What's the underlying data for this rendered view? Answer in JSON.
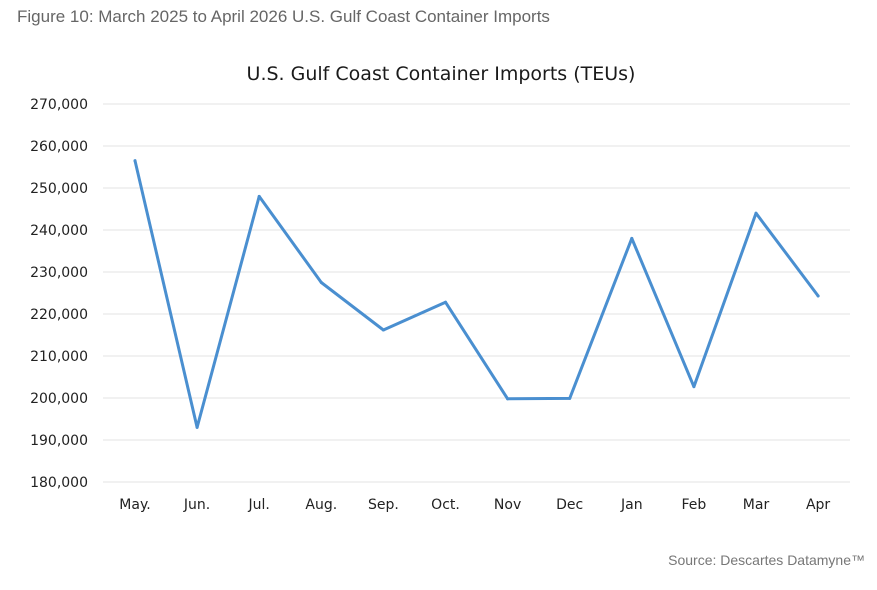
{
  "caption": "Figure 10: March 2025 to April 2026 U.S. Gulf Coast Container Imports",
  "source": "Source: Descartes Datamyne™",
  "colors": {
    "line": "#4a8fd0"
  },
  "chart_data": {
    "type": "line",
    "title": "U.S. Gulf Coast Container Imports (TEUs)",
    "xlabel": "",
    "ylabel": "",
    "categories": [
      "May.",
      "Jun.",
      "Jul.",
      "Aug.",
      "Sep.",
      "Oct.",
      "Nov",
      "Dec",
      "Jan",
      "Feb",
      "Mar",
      "Apr"
    ],
    "values": [
      256500,
      193000,
      248000,
      227500,
      216200,
      222800,
      199800,
      199900,
      238000,
      202700,
      244000,
      224300
    ],
    "ylim": [
      180000,
      270000
    ],
    "yticks": [
      "180,000",
      "190,000",
      "200,000",
      "210,000",
      "220,000",
      "230,000",
      "240,000",
      "250,000",
      "260,000",
      "270,000"
    ],
    "grid": true,
    "legend": "none"
  }
}
